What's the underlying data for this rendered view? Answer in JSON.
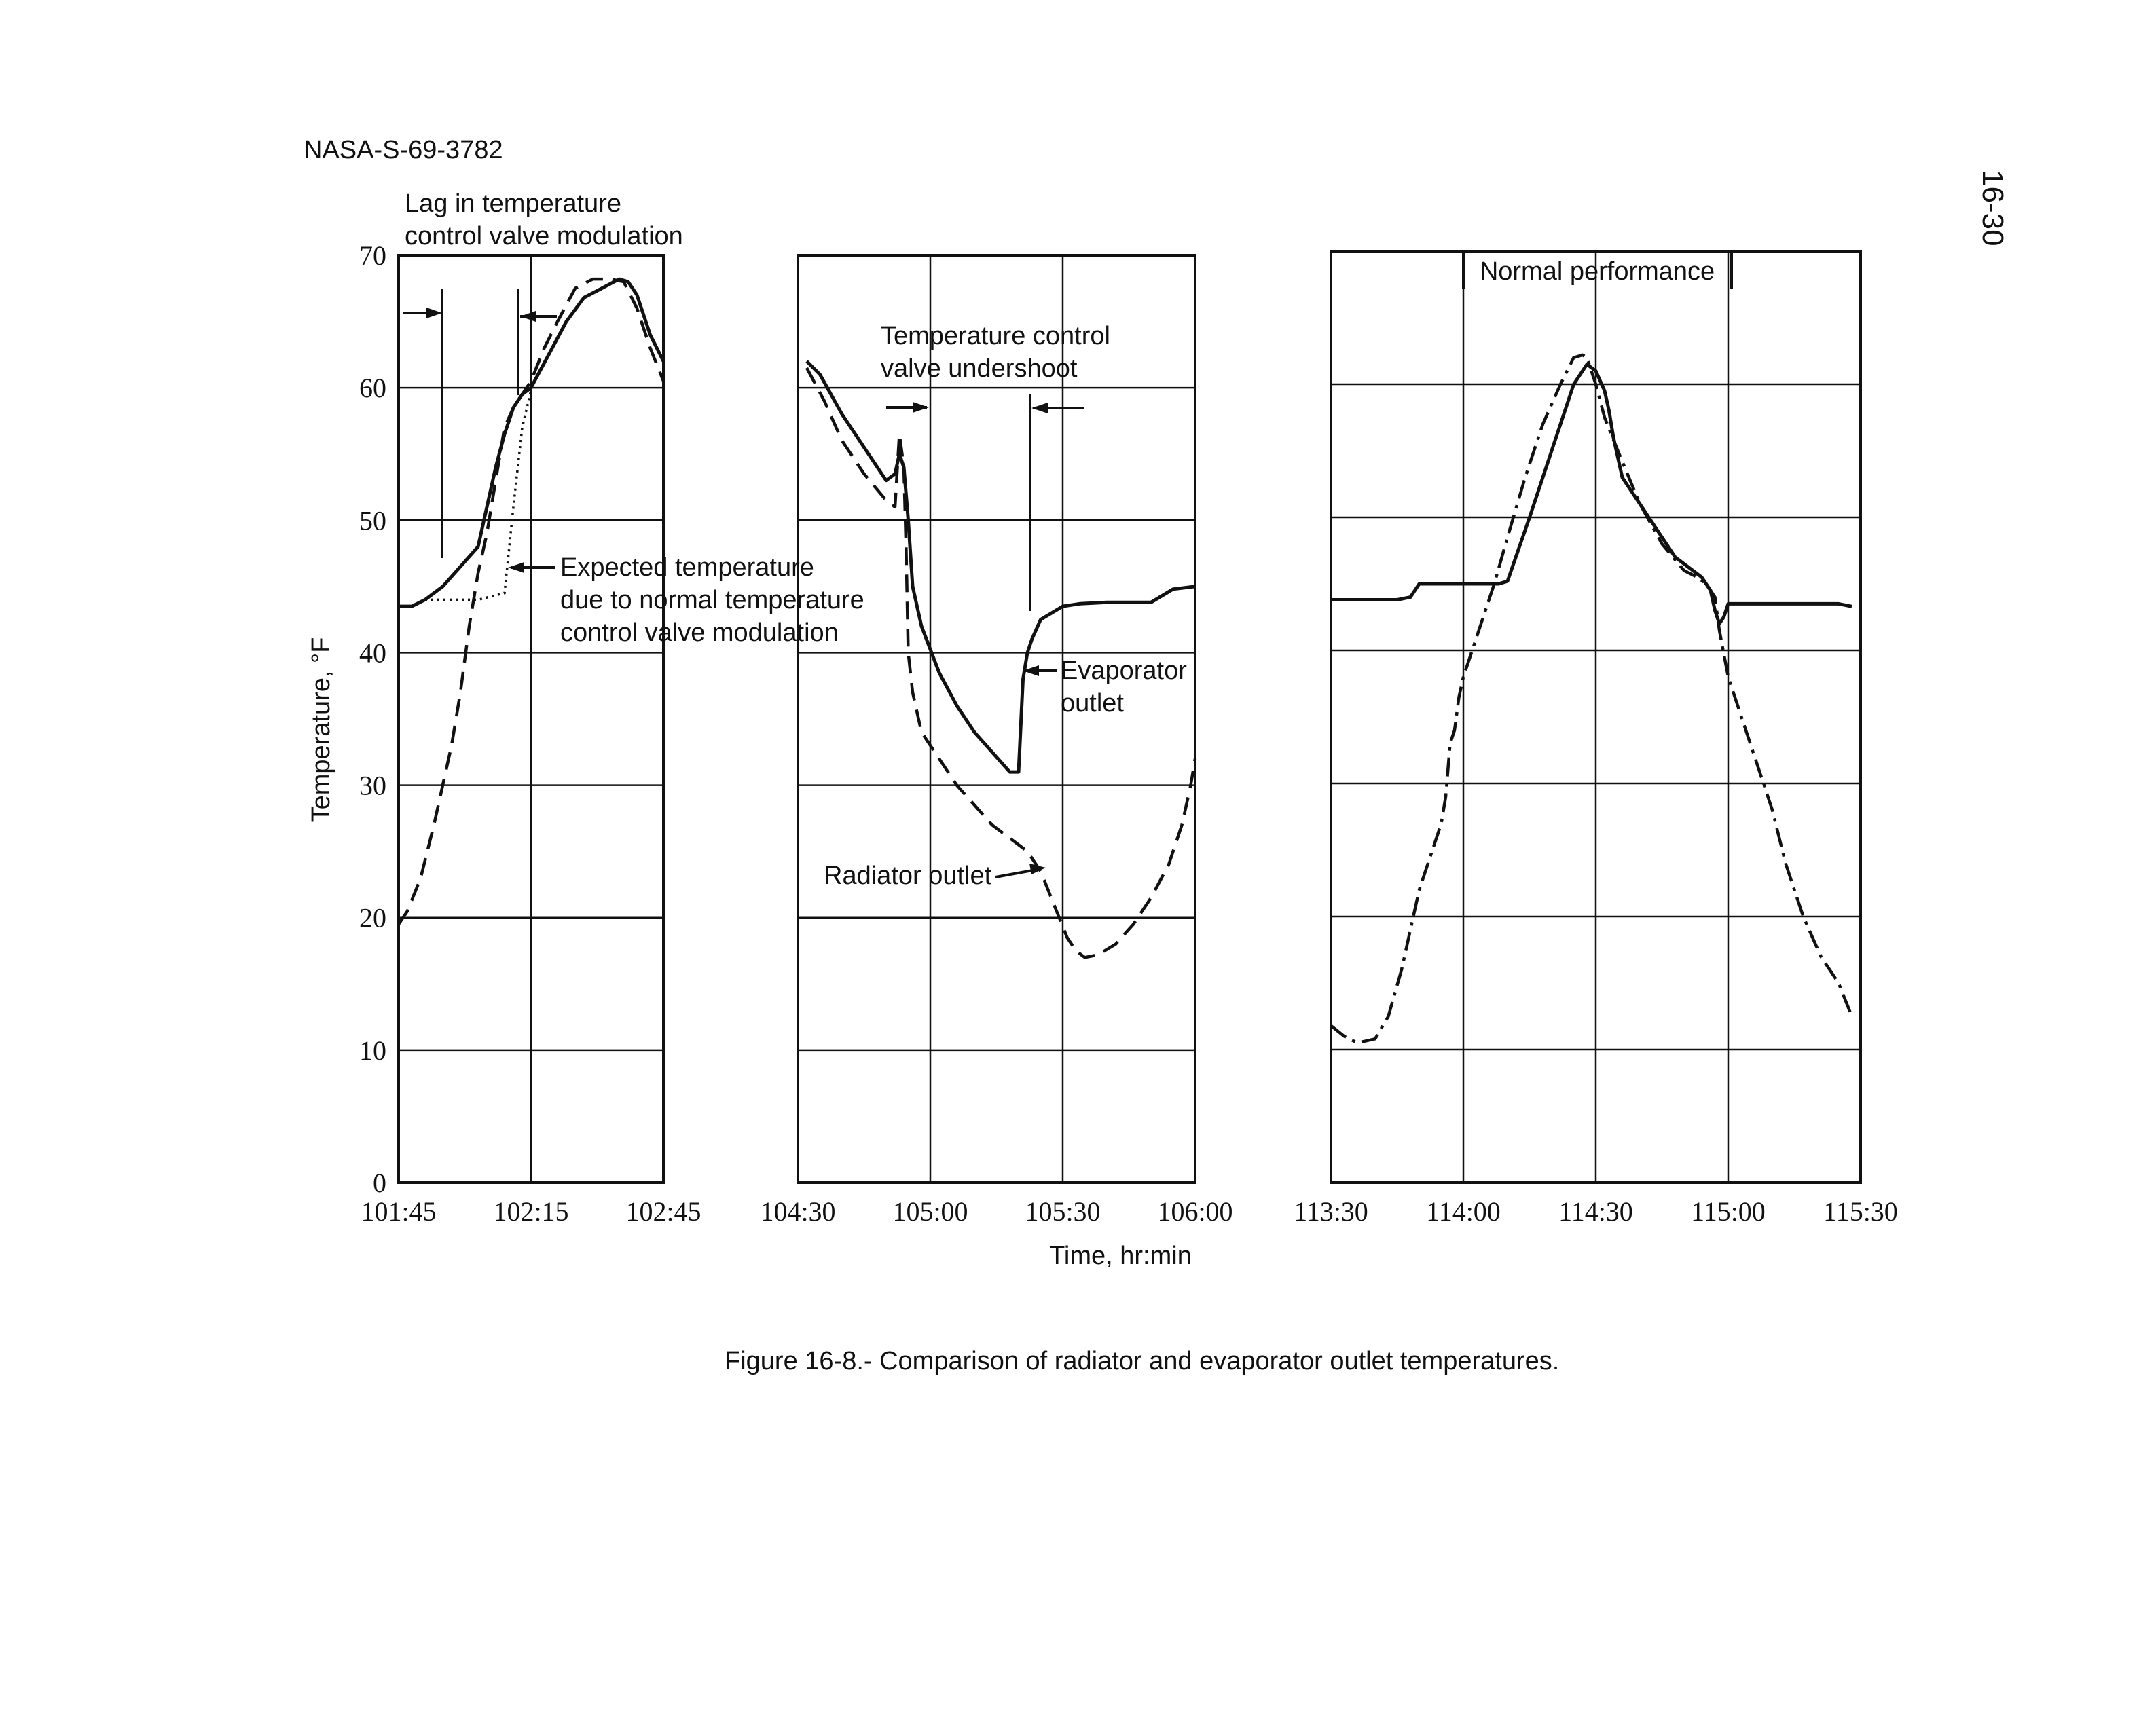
{
  "header": {
    "doc_id": "NASA-S-69-3782",
    "page_number": "16-30"
  },
  "figure": {
    "caption": "Figure 16-8.-  Comparison of radiator and evaporator outlet temperatures."
  },
  "chart_data": [
    {
      "type": "line",
      "panel": "left",
      "ylabel": "Temperature, °F",
      "ylim": [
        0,
        70
      ],
      "yticks": [
        "0",
        "10",
        "20",
        "30",
        "40",
        "50",
        "60",
        "70"
      ],
      "xlim": [
        0,
        60
      ],
      "xtick_positions": [
        0,
        30,
        60
      ],
      "xtick_labels": [
        "101:45",
        "102:15",
        "102:45"
      ],
      "grid": true,
      "series": [
        {
          "style": "solid",
          "x": [
            0,
            3,
            6,
            10,
            14,
            18,
            20,
            22,
            24,
            26,
            28,
            30,
            34,
            38,
            42,
            46,
            50,
            52,
            54,
            57,
            60
          ],
          "y": [
            43.5,
            43.5,
            44,
            45,
            46.5,
            48,
            51,
            54,
            56.5,
            58.5,
            59.5,
            60,
            62.5,
            65,
            66.8,
            67.5,
            68.2,
            68,
            67,
            64,
            62
          ]
        },
        {
          "style": "dashed",
          "x": [
            0,
            2,
            5,
            8,
            12,
            14,
            16,
            18,
            20,
            21,
            22,
            23,
            24,
            26,
            28,
            30,
            33,
            36,
            40,
            44,
            48,
            51,
            54,
            57,
            60
          ],
          "y": [
            19.5,
            20.5,
            23,
            27,
            33,
            37,
            42,
            46,
            49,
            51,
            53,
            55,
            57,
            58.5,
            59.5,
            60.5,
            63,
            65,
            67.5,
            68.2,
            68.2,
            68,
            66,
            63,
            60.5
          ]
        },
        {
          "style": "dotted",
          "x": [
            6,
            18,
            24,
            26,
            28,
            30
          ],
          "y": [
            44,
            44,
            44.5,
            51,
            57,
            59.8
          ]
        }
      ],
      "annotations": [
        {
          "text_lines": [
            "Lag in temperature",
            "control valve modulation"
          ]
        },
        {
          "text_lines": [
            "Expected temperature",
            "due to normal temperature",
            "control valve modulation"
          ]
        }
      ]
    },
    {
      "type": "line",
      "panel": "middle",
      "ylim": [
        0,
        70
      ],
      "xlim": [
        0,
        90
      ],
      "xtick_positions": [
        0,
        30,
        60,
        90
      ],
      "xtick_labels": [
        "104:30",
        "105:00",
        "105:30",
        "106:00"
      ],
      "grid": true,
      "series": [
        {
          "name": "Evaporator outlet",
          "style": "solid",
          "x": [
            2,
            5,
            10,
            16,
            20,
            22,
            23,
            24,
            25,
            26,
            28,
            32,
            36,
            40,
            44,
            48,
            50,
            50,
            51,
            52,
            53,
            55,
            60,
            64,
            70,
            76,
            80,
            85,
            90
          ],
          "y": [
            62,
            61,
            58,
            55,
            53,
            53.5,
            55,
            54,
            50,
            45,
            42,
            38.5,
            36,
            34,
            32.5,
            31,
            31,
            31,
            38,
            40,
            41,
            42.5,
            43.5,
            43.7,
            43.8,
            43.8,
            43.8,
            44.8,
            45
          ]
        },
        {
          "name": "Radiator outlet",
          "style": "dashed",
          "x": [
            2,
            6,
            10,
            15,
            20,
            22,
            23,
            24,
            24.5,
            25,
            26,
            28,
            32,
            36,
            40,
            44,
            48,
            52,
            55,
            58,
            61,
            63,
            65,
            68,
            72,
            76,
            80,
            84,
            87,
            89,
            90
          ],
          "y": [
            61.5,
            59,
            56,
            53.5,
            51.5,
            51,
            56.5,
            54,
            48,
            40,
            37,
            34,
            32,
            30,
            28.5,
            27,
            26,
            25,
            23.5,
            21,
            18.5,
            17.5,
            17,
            17.2,
            18,
            19.5,
            21.5,
            24,
            27,
            30,
            32
          ]
        }
      ],
      "annotations": [
        {
          "text_lines": [
            "Temperature control",
            "valve undershoot"
          ]
        },
        {
          "text_lines": [
            "Evaporator",
            "outlet"
          ]
        },
        {
          "text_lines": [
            "Radiator outlet"
          ]
        }
      ]
    },
    {
      "type": "line",
      "panel": "right",
      "ylim": [
        0,
        70
      ],
      "xlim": [
        0,
        120
      ],
      "xtick_positions": [
        0,
        30,
        60,
        90,
        120
      ],
      "xtick_labels": [
        "113:30",
        "114:00",
        "114:30",
        "115:00",
        "115:30"
      ],
      "grid": true,
      "title": "Normal performance",
      "series": [
        {
          "style": "solid",
          "x": [
            0,
            15,
            18,
            20,
            38,
            40,
            45,
            50,
            55,
            58,
            60,
            62,
            63,
            64,
            66,
            70,
            74,
            78,
            82,
            84,
            86,
            87,
            88,
            89,
            90,
            93,
            98,
            105,
            115,
            118
          ],
          "y": [
            43.8,
            43.8,
            44,
            45,
            45,
            45.2,
            50,
            55,
            60,
            61.5,
            61,
            59.5,
            58,
            56,
            53,
            51,
            49,
            47,
            46,
            45.5,
            44.5,
            43,
            42,
            42.5,
            43.5,
            43.5,
            43.5,
            43.5,
            43.5,
            43.3
          ]
        },
        {
          "style": "dashdot",
          "x": [
            0,
            3,
            6,
            10,
            13,
            16,
            18,
            20,
            22,
            25,
            26,
            27,
            28,
            29,
            30,
            32,
            34,
            37,
            40,
            44,
            48,
            52,
            55,
            57,
            58,
            59,
            60,
            62,
            65,
            70,
            75,
            80,
            83,
            85,
            86,
            87,
            88,
            90,
            93,
            97,
            100,
            103,
            107,
            111,
            115,
            118
          ],
          "y": [
            11.8,
            11,
            10.5,
            10.8,
            12.5,
            16,
            19,
            22,
            24,
            27,
            29,
            33,
            34,
            36.5,
            38,
            40,
            42,
            45,
            48.5,
            53,
            57,
            60,
            62,
            62.2,
            62,
            61,
            60,
            57.5,
            55,
            51,
            48,
            46,
            45.5,
            45,
            44.5,
            44,
            41.5,
            38,
            35,
            31,
            28,
            24,
            20,
            17,
            15,
            12.5
          ]
        }
      ]
    }
  ]
}
